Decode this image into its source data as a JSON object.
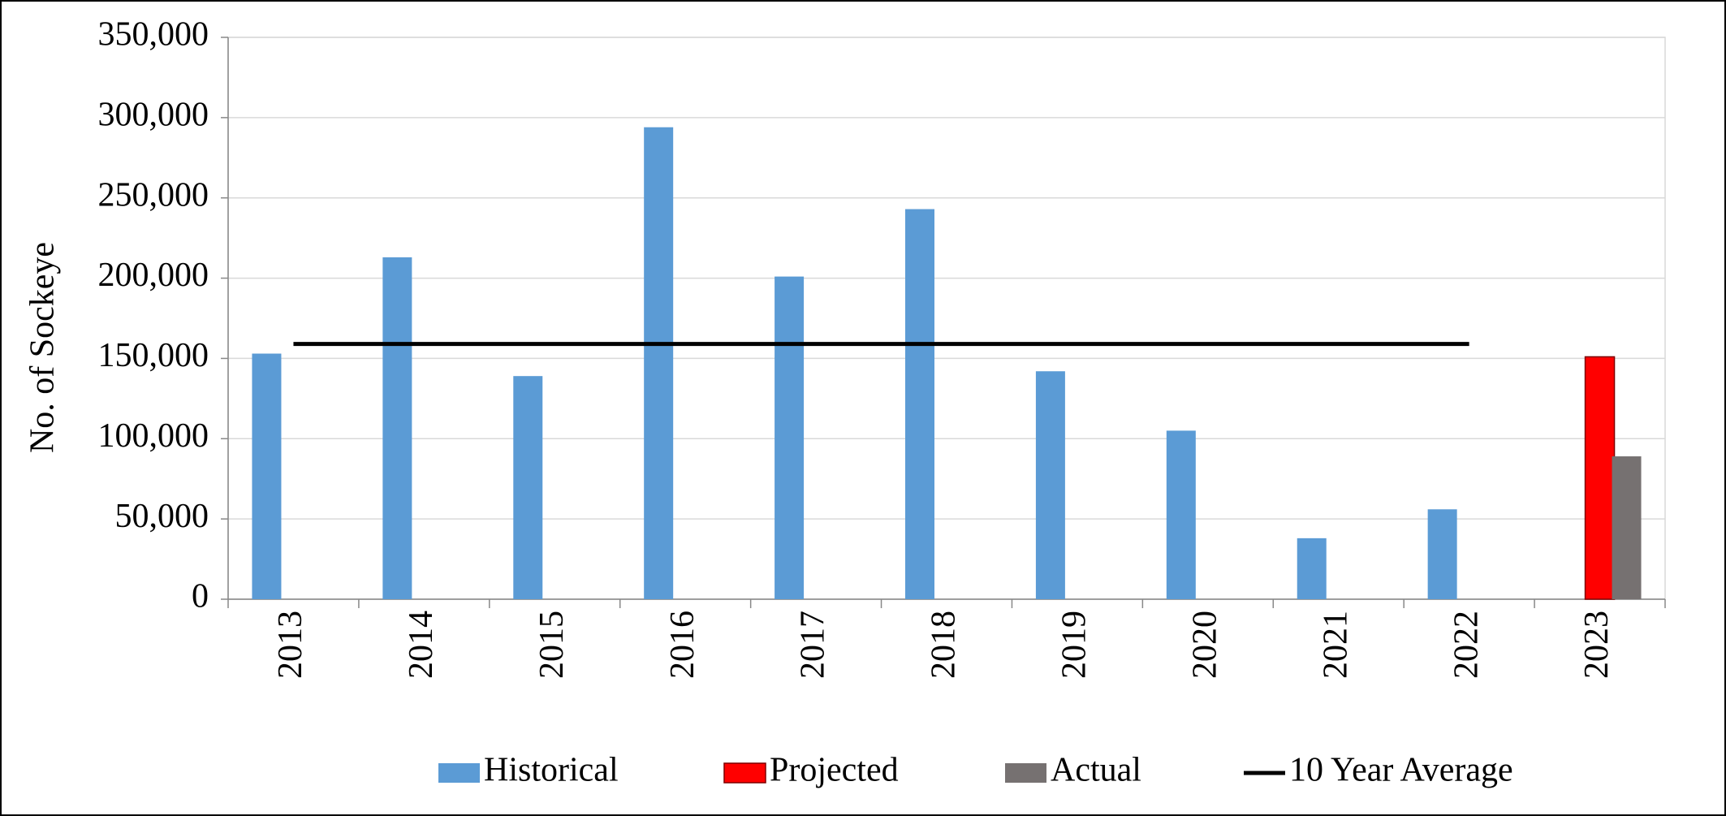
{
  "chart_data": {
    "type": "bar",
    "y_label": "No. of Sockeye",
    "categories": [
      "2013",
      "2014",
      "2015",
      "2016",
      "2017",
      "2018",
      "2019",
      "2020",
      "2021",
      "2022",
      "2023"
    ],
    "series": [
      {
        "name": "Historical",
        "type": "bar",
        "color": "#5b9bd5",
        "values": [
          153000,
          213000,
          139000,
          294000,
          201000,
          243000,
          142000,
          105000,
          38000,
          56000,
          null
        ]
      },
      {
        "name": "Projected",
        "type": "bar",
        "color": "#ff0000",
        "values": [
          null,
          null,
          null,
          null,
          null,
          null,
          null,
          null,
          null,
          null,
          151000
        ]
      },
      {
        "name": "Actual",
        "type": "bar",
        "color": "#767171",
        "values": [
          null,
          null,
          null,
          null,
          null,
          null,
          null,
          null,
          null,
          null,
          89000
        ]
      },
      {
        "name": "10 Year Average",
        "type": "line",
        "color": "#000000",
        "values": [
          159000,
          159000,
          159000,
          159000,
          159000,
          159000,
          159000,
          159000,
          159000,
          159000,
          null
        ]
      }
    ],
    "ylim": [
      0,
      350000
    ],
    "yticks": [
      {
        "value": 0,
        "label": "0"
      },
      {
        "value": 50000,
        "label": "50,000"
      },
      {
        "value": 100000,
        "label": "100,000"
      },
      {
        "value": 150000,
        "label": "150,000"
      },
      {
        "value": 200000,
        "label": "200,000"
      },
      {
        "value": 250000,
        "label": "250,000"
      },
      {
        "value": 300000,
        "label": "300,000"
      },
      {
        "value": 350000,
        "label": "350,000"
      }
    ],
    "grid": true,
    "legend": "bottom"
  }
}
